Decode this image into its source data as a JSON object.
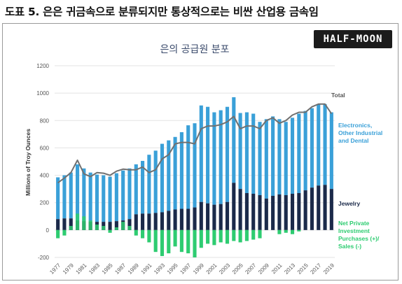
{
  "page_title": "도표 5. 은은 귀금속으로 분류되지만 통상적으로는 비싼 산업용 금속임",
  "logo_text": "HALF-MOON",
  "chart_data": {
    "type": "bar",
    "title": "은의 공급원 분포",
    "ylabel": "Millions of Troy Ounces",
    "ylim": [
      -200,
      1200
    ],
    "yticks": [
      -200,
      0,
      200,
      400,
      600,
      800,
      1000,
      1200
    ],
    "grid": true,
    "years": [
      1977,
      1978,
      1979,
      1980,
      1981,
      1982,
      1983,
      1984,
      1985,
      1986,
      1987,
      1988,
      1989,
      1990,
      1991,
      1992,
      1993,
      1994,
      1995,
      1996,
      1997,
      1998,
      1999,
      2000,
      2001,
      2002,
      2003,
      2004,
      2005,
      2006,
      2007,
      2008,
      2009,
      2010,
      2011,
      2012,
      2013,
      2014,
      2015,
      2016,
      2017,
      2018,
      2019
    ],
    "xtick_labels": [
      "1977",
      "1979",
      "1981",
      "1983",
      "1985",
      "1987",
      "1989",
      "1991",
      "1993",
      "1995",
      "1997",
      "1999",
      "2001",
      "2003",
      "2005",
      "2007",
      "2009",
      "2011",
      "2013",
      "2015",
      "2017",
      "2019"
    ],
    "series": [
      {
        "name": "Jewelry",
        "color": "#1b2a4a",
        "values": [
          80,
          85,
          85,
          70,
          65,
          60,
          60,
          60,
          60,
          65,
          70,
          80,
          115,
          120,
          120,
          125,
          130,
          140,
          150,
          155,
          155,
          165,
          205,
          195,
          185,
          190,
          205,
          345,
          300,
          270,
          265,
          255,
          230,
          250,
          260,
          255,
          265,
          270,
          290,
          310,
          325,
          330,
          300
        ]
      },
      {
        "name": "Electronics, Other Industrial and Dental",
        "color": "#3aa0d8",
        "values": [
          385,
          400,
          420,
          480,
          450,
          420,
          405,
          400,
          390,
          415,
          435,
          450,
          480,
          505,
          550,
          580,
          630,
          655,
          680,
          715,
          765,
          780,
          910,
          900,
          860,
          875,
          900,
          970,
          855,
          860,
          850,
          790,
          810,
          830,
          810,
          790,
          820,
          850,
          870,
          890,
          920,
          920,
          860
        ]
      },
      {
        "name": "Net Private Investment Purchases (+)/ Sales (-)",
        "color": "#2ecc71",
        "values": [
          -60,
          -40,
          30,
          120,
          100,
          70,
          40,
          30,
          -20,
          20,
          60,
          30,
          -40,
          -60,
          -90,
          -160,
          -190,
          -170,
          -120,
          -160,
          -170,
          -200,
          -130,
          -100,
          -110,
          -90,
          -100,
          -80,
          -90,
          -80,
          -70,
          -60,
          0,
          0,
          -30,
          -20,
          -30,
          -10,
          0,
          0,
          0,
          0,
          0
        ]
      },
      {
        "name": "Total",
        "color": "#707070",
        "type": "line",
        "values": [
          345,
          380,
          420,
          510,
          410,
          390,
          420,
          415,
          400,
          430,
          445,
          440,
          440,
          460,
          420,
          440,
          520,
          550,
          630,
          640,
          640,
          630,
          740,
          760,
          760,
          770,
          790,
          830,
          740,
          760,
          760,
          740,
          800,
          820,
          780,
          800,
          840,
          860,
          860,
          900,
          920,
          920,
          850
        ]
      }
    ],
    "legend": [
      "Total",
      "Electronics, Other Industrial and Dental",
      "Jewelry",
      "Net Private Investment Purchases (+)/ Sales (-)"
    ],
    "legend_placement": "right"
  }
}
